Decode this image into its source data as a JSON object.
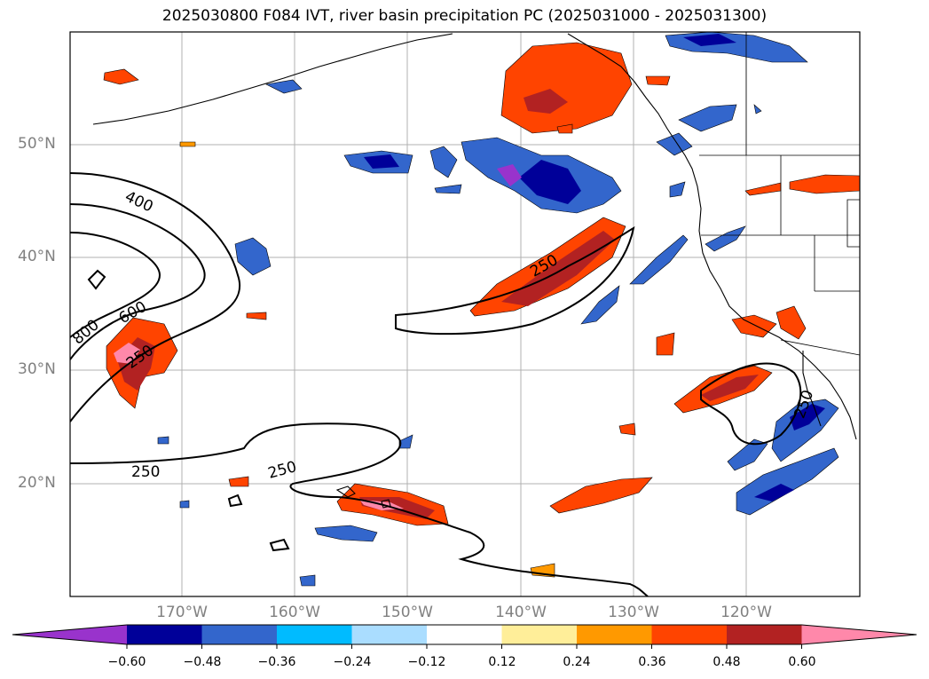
{
  "title": "2025030800 F084 IVT, river basin precipitation PC (2025031000 - 2025031300)",
  "latitude_labels": [
    "50°N",
    "40°N",
    "30°N",
    "20°N"
  ],
  "longitude_labels": [
    "170°W",
    "160°W",
    "150°W",
    "140°W",
    "130°W",
    "120°W"
  ],
  "ivt_contour_labels": [
    "400",
    "600",
    "800",
    "250",
    "250",
    "250",
    "250",
    "250"
  ],
  "colorbar": {
    "tick_labels": [
      "−0.60",
      "−0.48",
      "−0.36",
      "−0.24",
      "−0.12",
      "0.12",
      "0.24",
      "0.36",
      "0.48",
      "0.60"
    ],
    "colors": [
      "#9933cc",
      "#000099",
      "#3366cc",
      "#00bbff",
      "#aaddff",
      "#ffffff",
      "#ffee99",
      "#ff9900",
      "#ff4400",
      "#b22222",
      "#ff88aa"
    ]
  }
}
